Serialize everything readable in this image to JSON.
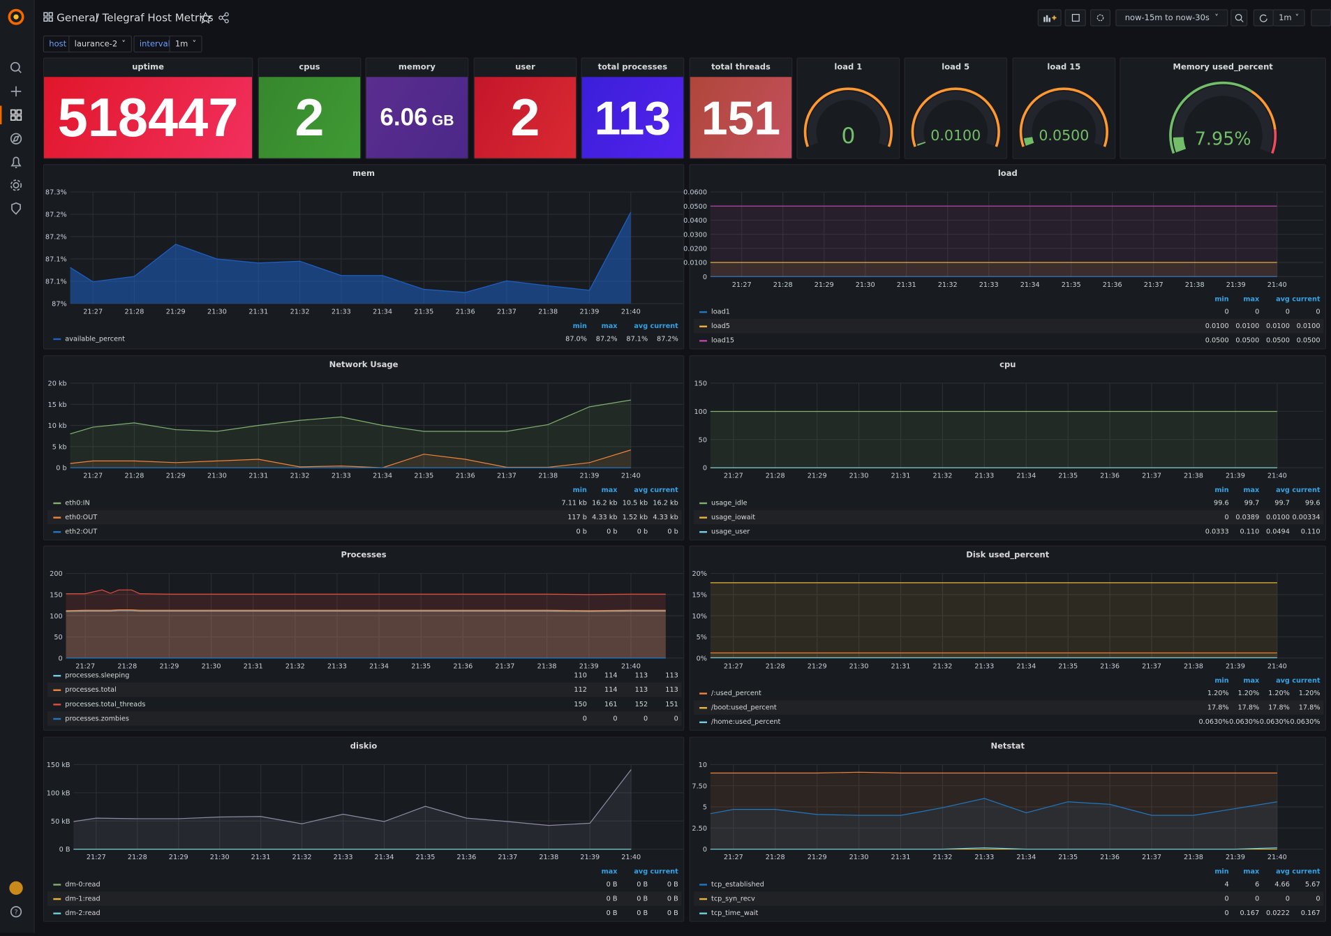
{
  "header": {
    "breadcrumb": [
      "General",
      "Telegraf Host Metrics"
    ],
    "separator": "/",
    "time_range": "now-15m to now-30s",
    "refresh": "1m"
  },
  "variables": [
    {
      "label": "host",
      "value": "laurance-2"
    },
    {
      "label": "interval",
      "value": "1m"
    }
  ],
  "time_axis": [
    {
      "value": 1287,
      "label": "21:27"
    },
    {
      "value": 1288,
      "label": "21:28"
    },
    {
      "value": 1289,
      "label": "21:29"
    },
    {
      "value": 1290,
      "label": "21:30"
    },
    {
      "value": 1291,
      "label": "21:31"
    },
    {
      "value": 1292,
      "label": "21:32"
    },
    {
      "value": 1293,
      "label": "21:33"
    },
    {
      "value": 1294,
      "label": "21:34"
    },
    {
      "value": 1295,
      "label": "21:35"
    },
    {
      "value": 1296,
      "label": "21:36"
    },
    {
      "value": 1297,
      "label": "21:37"
    },
    {
      "value": 1298,
      "label": "21:38"
    },
    {
      "value": 1299,
      "label": "21:39"
    },
    {
      "value": 1300,
      "label": "21:40"
    }
  ],
  "stats": [
    {
      "title": "uptime",
      "value": 518447,
      "colors": [
        "#e0162a",
        "#f2305e"
      ]
    },
    {
      "title": "cpus",
      "value": 2,
      "colors": [
        "#37872d",
        "#3f9a34"
      ]
    },
    {
      "title": "memory",
      "value": 6.06,
      "unit": "GB",
      "colors": [
        "#5a2d8f",
        "#4b2888"
      ]
    },
    {
      "title": "user",
      "value": 2,
      "colors": [
        "#c4162a",
        "#d92a33"
      ]
    },
    {
      "title": "total processes",
      "value": 113,
      "colors": [
        "#3b1fd8",
        "#5322ee"
      ]
    },
    {
      "title": "total threads",
      "value": 151,
      "colors": [
        "#b0463a",
        "#c4505e"
      ]
    }
  ],
  "gauges": [
    {
      "title": "load 1",
      "value": 0,
      "range": [
        0,
        1
      ],
      "value_color": "#73bf69",
      "ring": [
        {
          "to": 1,
          "color": "#ff9830"
        }
      ]
    },
    {
      "title": "load 5",
      "value": {
        "value": 0.01,
        "label": "0.0100"
      },
      "range": [
        0,
        1
      ],
      "value_color": "#73bf69",
      "ring": [
        {
          "to": 1,
          "color": "#ff9830"
        }
      ]
    },
    {
      "title": "load 15",
      "value": {
        "value": 0.05,
        "label": "0.0500"
      },
      "range": [
        0,
        1
      ],
      "value_color": "#73bf69",
      "ring": [
        {
          "to": 1,
          "color": "#ff9830"
        }
      ]
    },
    {
      "title": "Memory used_percent",
      "value": {
        "value": 7.95,
        "label": "7.95%"
      },
      "range": [
        0,
        100
      ],
      "value_color": "#73bf69",
      "ring": [
        {
          "to": 65,
          "color": "#73bf69"
        },
        {
          "to": 88,
          "color": "#ff9830"
        },
        {
          "to": 100,
          "color": "#f2495c"
        }
      ]
    }
  ],
  "graphs": [
    {
      "title": "mem",
      "fill_opacity": 0.55,
      "x": [
        1286.45,
        1287,
        1288,
        1289,
        1290,
        1291,
        1292,
        1293,
        1294,
        1295,
        1296,
        1297,
        1298,
        1299,
        1300
      ],
      "xlim": [
        1286.45,
        1301.27
      ],
      "ylim": [
        87,
        87.25
      ],
      "yticks": [
        {
          "value": 87,
          "label": "87%"
        },
        {
          "value": 87.05,
          "label": "87.1%"
        },
        {
          "value": 87.1,
          "label": "87.1%"
        },
        {
          "value": 87.15,
          "label": "87.2%"
        },
        {
          "value": 87.2,
          "label": "87.2%"
        },
        {
          "value": 87.25,
          "label": "87.3%"
        }
      ],
      "legend_columns": [
        "min",
        "max",
        "avg",
        "current"
      ],
      "series": [
        {
          "name": "available_percent",
          "color": "#1f60c4",
          "values": [
            87.081,
            87.049,
            87.061,
            87.133,
            87.1,
            87.091,
            87.095,
            87.063,
            87.063,
            87.032,
            87.025,
            87.051,
            87.04,
            87.03,
            87.205
          ],
          "legend_values": [
            "87.0%",
            "87.2%",
            "87.1%",
            "87.2%"
          ]
        }
      ]
    },
    {
      "title": "load",
      "fill_opacity": 0.1,
      "x": [
        1286.24,
        1300
      ],
      "xlim": [
        1286.24,
        1301.13
      ],
      "ylim": [
        0,
        0.06
      ],
      "yticks": [
        0,
        {
          "value": 0.01,
          "label": "0.0100"
        },
        {
          "value": 0.02,
          "label": "0.0200"
        },
        {
          "value": 0.03,
          "label": "0.0300"
        },
        {
          "value": 0.04,
          "label": "0.0400"
        },
        {
          "value": 0.05,
          "label": "0.0500"
        },
        {
          "value": 0.06,
          "label": "0.0600"
        }
      ],
      "legend_columns": [
        "min",
        "max",
        "avg",
        "current"
      ],
      "series": [
        {
          "name": "load1",
          "color": "#1f78c1",
          "values": [
            0,
            0
          ],
          "legend_values": [
            "0",
            "0",
            "0",
            "0"
          ]
        },
        {
          "name": "load5",
          "color": "#eab839",
          "values": [
            0.01,
            0.01
          ],
          "legend_values": [
            "0.0100",
            "0.0100",
            "0.0100",
            "0.0100"
          ]
        },
        {
          "name": "load15",
          "color": "#ba43a9",
          "values": [
            0.05,
            0.05
          ],
          "legend_values": [
            "0.0500",
            "0.0500",
            "0.0500",
            "0.0500"
          ]
        }
      ]
    },
    {
      "title": "Network Usage",
      "fill_opacity": 0.1,
      "x": [
        1286.45,
        1287,
        1288,
        1289,
        1290,
        1291,
        1292,
        1293,
        1294,
        1295,
        1296,
        1297,
        1298,
        1299,
        1300
      ],
      "xlim": [
        1286.45,
        1301.27
      ],
      "ylim": [
        0,
        20
      ],
      "yticks": [
        {
          "value": 0,
          "label": "0 b"
        },
        {
          "value": 5,
          "label": "5 kb"
        },
        {
          "value": 10,
          "label": "10 kb"
        },
        {
          "value": 15,
          "label": "15 kb"
        },
        {
          "value": 20,
          "label": "20 kb"
        }
      ],
      "legend_columns": [
        "min",
        "max",
        "avg",
        "current"
      ],
      "series": [
        {
          "name": "eth0:IN",
          "color": "#7eb26d",
          "values": [
            8.0,
            9.6,
            10.6,
            9.0,
            8.6,
            10.0,
            11.2,
            12.0,
            10.0,
            8.6,
            8.6,
            8.6,
            10.2,
            14.4,
            16.0
          ],
          "legend_values": [
            "7.11 kb",
            "16.2 kb",
            "10.5 kb",
            "16.2 kb"
          ]
        },
        {
          "name": "eth0:OUT",
          "color": "#ef843c",
          "values": [
            1.0,
            1.6,
            1.6,
            1.2,
            1.6,
            2.0,
            0.2,
            0.4,
            0,
            3.2,
            2.0,
            0.1,
            0.1,
            1.2,
            4.2
          ],
          "legend_values": [
            "117 b",
            "4.33 kb",
            "1.52 kb",
            "4.33 kb"
          ]
        },
        {
          "name": "eth2:OUT",
          "color": "#1f78c1",
          "values": [
            0,
            0,
            0,
            0,
            0,
            0,
            0,
            0,
            0,
            0,
            0,
            0,
            0,
            0,
            0
          ],
          "legend_values": [
            "0 b",
            "0 b",
            "0 b",
            "0 b"
          ]
        }
      ]
    },
    {
      "title": "cpu",
      "fill_opacity": 0.1,
      "x": [
        1286.45,
        1300
      ],
      "xlim": [
        1286.45,
        1301.11
      ],
      "ylim": [
        0,
        150
      ],
      "yticks": [
        0,
        50,
        100,
        150
      ],
      "legend_columns": [
        "min",
        "max",
        "avg",
        "current"
      ],
      "series": [
        {
          "name": "usage_idle",
          "color": "#7eb26d",
          "values": [
            99.7,
            99.7
          ],
          "legend_values": [
            "99.6",
            "99.7",
            "99.7",
            "99.6"
          ]
        },
        {
          "name": "usage_iowait",
          "color": "#eab839",
          "values": [
            0,
            0
          ],
          "legend_values": [
            "0",
            "0.0389",
            "0.0100",
            "0.00334"
          ]
        },
        {
          "name": "usage_user",
          "color": "#6ed0e0",
          "values": [
            0.05,
            0.05
          ],
          "legend_values": [
            "0.0333",
            "0.110",
            "0.0494",
            "0.110"
          ]
        }
      ]
    },
    {
      "title": "Processes",
      "fill_opacity": 0.15,
      "x": [
        1286.54,
        1287,
        1287.4,
        1287.6,
        1287.8,
        1288.1,
        1288.3,
        1289,
        1290,
        1291,
        1292,
        1293,
        1294,
        1295,
        1296,
        1297,
        1298,
        1299,
        1300,
        1300.83
      ],
      "xlim": [
        1286.54,
        1301.25
      ],
      "ylim": [
        0,
        200
      ],
      "yticks": [
        0,
        50,
        100,
        150,
        200
      ],
      "series": [
        {
          "name": "processes.sleeping",
          "color": "#6ed0e0",
          "values": [
            110,
            111,
            111,
            111,
            112,
            112,
            111,
            111,
            111,
            111,
            111,
            111,
            111,
            111,
            111,
            111,
            111,
            110,
            111,
            111
          ],
          "legend_values": [
            "110",
            "114",
            "113",
            "113"
          ]
        },
        {
          "name": "processes.total",
          "color": "#ef843c",
          "values": [
            112,
            113,
            113,
            113,
            114,
            114,
            113,
            113,
            113,
            113,
            113,
            113,
            113,
            113,
            113,
            113,
            113,
            112,
            113,
            113
          ],
          "legend_values": [
            "112",
            "114",
            "113",
            "113"
          ]
        },
        {
          "name": "processes.total_threads",
          "color": "#e24d42",
          "values": [
            152,
            152,
            161,
            153,
            161,
            161,
            152,
            151,
            151,
            151,
            151,
            151,
            151,
            151,
            151,
            151,
            151,
            150,
            151,
            151
          ],
          "legend_values": [
            "150",
            "161",
            "152",
            "151"
          ]
        },
        {
          "name": "processes.zombies",
          "color": "#1f78c1",
          "values": [
            0,
            0,
            0,
            0,
            0,
            0,
            0,
            0,
            0,
            0,
            0,
            0,
            0,
            0,
            0,
            0,
            0,
            0,
            0,
            0
          ],
          "legend_values": [
            "0",
            "0",
            "0",
            "0"
          ]
        }
      ]
    },
    {
      "title": "Disk used_percent",
      "fill_opacity": 0.1,
      "x": [
        1286.45,
        1300
      ],
      "xlim": [
        1286.45,
        1301.11
      ],
      "ylim": [
        0,
        20
      ],
      "yticks": [
        {
          "value": 0,
          "label": "0%"
        },
        {
          "value": 5,
          "label": "5%"
        },
        {
          "value": 10,
          "label": "10%"
        },
        {
          "value": 15,
          "label": "15%"
        },
        {
          "value": 20,
          "label": "20%"
        }
      ],
      "legend_columns": [
        "min",
        "max",
        "avg",
        "current"
      ],
      "series": [
        {
          "name": "/:used_percent",
          "color": "#ef843c",
          "values": [
            1.2,
            1.2
          ],
          "legend_values": [
            "1.20%",
            "1.20%",
            "1.20%",
            "1.20%"
          ]
        },
        {
          "name": "/boot:used_percent",
          "color": "#eab839",
          "values": [
            17.8,
            17.8
          ],
          "legend_values": [
            "17.8%",
            "17.8%",
            "17.8%",
            "17.8%"
          ]
        },
        {
          "name": "/home:used_percent",
          "color": "#6ed0e0",
          "values": [
            0.063,
            0.063
          ],
          "legend_values": [
            "0.0630%",
            "0.0630%",
            "0.0630%",
            "0.0630%"
          ]
        }
      ]
    },
    {
      "title": "diskio",
      "fill_opacity": 0.12,
      "x": [
        1286.45,
        1287,
        1288,
        1289,
        1290,
        1291,
        1292,
        1293,
        1294,
        1295,
        1296,
        1297,
        1298,
        1299,
        1300
      ],
      "xlim": [
        1286.45,
        1301.27
      ],
      "ylim": [
        0,
        150
      ],
      "yticks": [
        {
          "value": 0,
          "label": "0 B"
        },
        {
          "value": 50,
          "label": "50 kB"
        },
        {
          "value": 100,
          "label": "100 kB"
        },
        {
          "value": 150,
          "label": "150 kB"
        }
      ],
      "legend_columns": [
        "max",
        "avg",
        "current"
      ],
      "series": [
        {
          "color": "#8e8aa6",
          "values": [
            49,
            55,
            54,
            54,
            57,
            58,
            45,
            62,
            49,
            76,
            55,
            49,
            42,
            46,
            141
          ]
        },
        {
          "name": "dm-0:read",
          "color": "#7eb26d",
          "values": [
            0,
            0,
            0,
            0,
            0,
            0,
            0,
            0,
            0,
            0,
            0,
            0,
            0,
            0,
            0
          ],
          "legend_values": [
            "0 B",
            "0 B",
            "0 B"
          ]
        },
        {
          "name": "dm-1:read",
          "color": "#eab839",
          "values": [
            0,
            0,
            0,
            0,
            0,
            0,
            0,
            0,
            0,
            0,
            0,
            0,
            0,
            0,
            0
          ],
          "legend_values": [
            "0 B",
            "0 B",
            "0 B"
          ]
        },
        {
          "name": "dm-2:read",
          "color": "#6ed0e0",
          "values": [
            0,
            0,
            0,
            0,
            0,
            0,
            0,
            0,
            0,
            0,
            0,
            0,
            0,
            0,
            0
          ],
          "legend_values": [
            "0 B",
            "0 B",
            "0 B"
          ]
        }
      ]
    },
    {
      "title": "Netstat",
      "fill_opacity": 0.1,
      "x": [
        1286.45,
        1287,
        1288,
        1289,
        1290,
        1291,
        1292,
        1293,
        1294,
        1295,
        1296,
        1297,
        1298,
        1299,
        1300
      ],
      "xlim": [
        1286.45,
        1301.11
      ],
      "ylim": [
        0,
        10
      ],
      "yticks": [
        0,
        {
          "value": 2.5,
          "label": "2.50"
        },
        5,
        {
          "value": 7.5,
          "label": "7.50"
        },
        10
      ],
      "legend_columns": [
        "min",
        "max",
        "avg",
        "current"
      ],
      "series": [
        {
          "color": "#ef843c",
          "values": [
            9,
            9,
            9,
            9,
            9.1,
            9,
            9,
            9,
            9,
            9,
            9,
            9,
            9,
            9,
            9
          ]
        },
        {
          "name": "tcp_established",
          "color": "#1f78c1",
          "values": [
            4.2,
            4.7,
            4.7,
            4.1,
            4,
            4,
            4.9,
            6,
            4.3,
            5.6,
            5.3,
            4,
            4,
            4.8,
            5.6
          ],
          "legend_values": [
            "4",
            "6",
            "4.66",
            "5.67"
          ]
        },
        {
          "name": "tcp_syn_recv",
          "color": "#eab839",
          "values": [
            0,
            0,
            0,
            0,
            0,
            0,
            0,
            0,
            0,
            0,
            0,
            0,
            0,
            0,
            0
          ],
          "legend_values": [
            "0",
            "0",
            "0",
            "0"
          ]
        },
        {
          "name": "tcp_time_wait",
          "color": "#6ed0e0",
          "values": [
            0,
            0,
            0,
            0,
            0,
            0,
            0,
            0.167,
            0,
            0,
            0,
            0,
            0,
            0,
            0.167
          ],
          "legend_values": [
            "0",
            "0.167",
            "0.0222",
            "0.167"
          ]
        }
      ]
    }
  ]
}
